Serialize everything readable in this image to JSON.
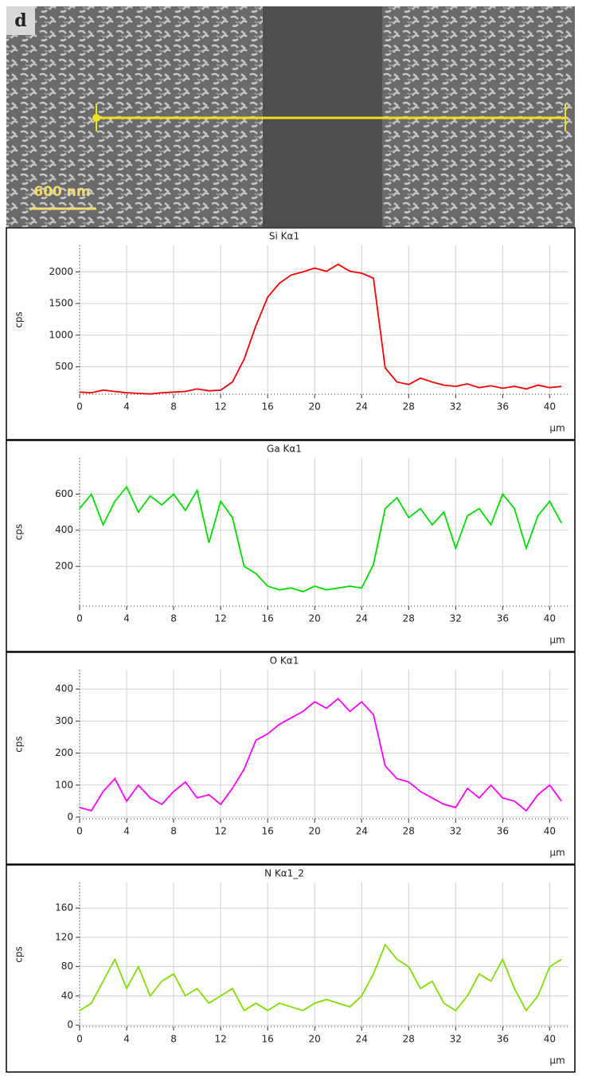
{
  "panel_label": "d",
  "scale_bar": "600 nm",
  "chart_data": [
    {
      "type": "line",
      "title": "Si Kα1",
      "ylabel": "cps",
      "xlabel": "µm",
      "color": "#ff0000",
      "x": [
        0,
        1,
        2,
        3,
        4,
        5,
        6,
        7,
        8,
        9,
        10,
        11,
        12,
        13,
        14,
        15,
        16,
        17,
        18,
        19,
        20,
        21,
        22,
        23,
        24,
        25,
        26,
        27,
        28,
        29,
        30,
        31,
        32,
        33,
        34,
        35,
        36,
        37,
        38,
        39,
        40,
        41
      ],
      "values": [
        100,
        90,
        130,
        110,
        90,
        80,
        70,
        90,
        100,
        110,
        150,
        120,
        130,
        260,
        620,
        1150,
        1600,
        1820,
        1950,
        2000,
        2060,
        2010,
        2120,
        2010,
        1980,
        1900,
        480,
        260,
        220,
        320,
        260,
        210,
        190,
        230,
        170,
        200,
        160,
        190,
        150,
        210,
        170,
        190
      ],
      "xlim": [
        0,
        41.6
      ],
      "ylim": [
        66,
        2420
      ],
      "xticks": [
        0,
        4,
        8,
        12,
        16,
        20,
        24,
        28,
        32,
        36,
        40
      ],
      "yticks": [
        500,
        1000,
        1500,
        2000
      ],
      "grid": true
    },
    {
      "type": "line",
      "title": "Ga Kα1",
      "ylabel": "cps",
      "xlabel": "µm",
      "color": "#00e000",
      "x": [
        0,
        1,
        2,
        3,
        4,
        5,
        6,
        7,
        8,
        9,
        10,
        11,
        12,
        13,
        14,
        15,
        16,
        17,
        18,
        19,
        20,
        21,
        22,
        23,
        24,
        25,
        26,
        27,
        28,
        29,
        30,
        31,
        32,
        33,
        34,
        35,
        36,
        37,
        38,
        39,
        40,
        41
      ],
      "values": [
        520,
        600,
        430,
        560,
        640,
        500,
        590,
        540,
        600,
        510,
        620,
        330,
        560,
        470,
        200,
        160,
        90,
        70,
        80,
        60,
        90,
        70,
        80,
        90,
        80,
        210,
        520,
        580,
        470,
        520,
        430,
        500,
        300,
        480,
        520,
        430,
        600,
        520,
        300,
        480,
        560,
        440
      ],
      "xlim": [
        0,
        41.6
      ],
      "ylim": [
        -20,
        800
      ],
      "xticks": [
        0,
        4,
        8,
        12,
        16,
        20,
        24,
        28,
        32,
        36,
        40
      ],
      "yticks": [
        200,
        400,
        600
      ],
      "grid": true
    },
    {
      "type": "line",
      "title": "O Kα1",
      "ylabel": "cps",
      "xlabel": "µm",
      "color": "#ff00ff",
      "x": [
        0,
        1,
        2,
        3,
        4,
        5,
        6,
        7,
        8,
        9,
        10,
        11,
        12,
        13,
        14,
        15,
        16,
        17,
        18,
        19,
        20,
        21,
        22,
        23,
        24,
        25,
        26,
        27,
        28,
        29,
        30,
        31,
        32,
        33,
        34,
        35,
        36,
        37,
        38,
        39,
        40,
        41
      ],
      "values": [
        30,
        20,
        80,
        120,
        50,
        100,
        60,
        40,
        80,
        110,
        60,
        70,
        40,
        90,
        150,
        240,
        260,
        290,
        310,
        330,
        360,
        340,
        370,
        330,
        360,
        320,
        160,
        120,
        110,
        80,
        60,
        40,
        30,
        90,
        60,
        100,
        60,
        50,
        20,
        70,
        100,
        50
      ],
      "xlim": [
        0,
        41.6
      ],
      "ylim": [
        -5,
        460
      ],
      "xticks": [
        0,
        4,
        8,
        12,
        16,
        20,
        24,
        28,
        32,
        36,
        40
      ],
      "yticks": [
        0,
        100,
        200,
        300,
        400
      ],
      "grid": true
    },
    {
      "type": "line",
      "title": "N Kα1_2",
      "ylabel": "cps",
      "xlabel": "µm",
      "color": "#7fe000",
      "x": [
        0,
        1,
        2,
        3,
        4,
        5,
        6,
        7,
        8,
        9,
        10,
        11,
        12,
        13,
        14,
        15,
        16,
        17,
        18,
        19,
        20,
        21,
        22,
        23,
        24,
        25,
        26,
        27,
        28,
        29,
        30,
        31,
        32,
        33,
        34,
        35,
        36,
        37,
        38,
        39,
        40,
        41
      ],
      "values": [
        20,
        30,
        60,
        90,
        50,
        80,
        40,
        60,
        70,
        40,
        50,
        30,
        40,
        50,
        20,
        30,
        20,
        30,
        25,
        20,
        30,
        35,
        30,
        25,
        40,
        70,
        110,
        90,
        80,
        50,
        60,
        30,
        20,
        40,
        70,
        60,
        90,
        50,
        20,
        40,
        80,
        90
      ],
      "xlim": [
        0,
        41.6
      ],
      "ylim": [
        -2,
        195
      ],
      "xticks": [
        0,
        4,
        8,
        12,
        16,
        20,
        24,
        28,
        32,
        36,
        40
      ],
      "yticks": [
        0,
        40,
        80,
        120,
        160
      ],
      "grid": true
    }
  ]
}
